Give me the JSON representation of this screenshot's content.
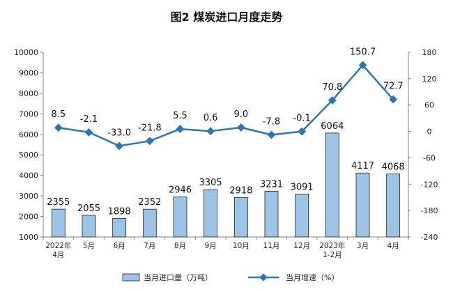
{
  "chart_data": {
    "type": "bar+line",
    "title": "图2  煤炭进口月度走势",
    "categories": [
      [
        "2022年",
        "4月"
      ],
      [
        "5月"
      ],
      [
        "6月"
      ],
      [
        "7月"
      ],
      [
        "8月"
      ],
      [
        "9月"
      ],
      [
        "10月"
      ],
      [
        "11月"
      ],
      [
        "12月"
      ],
      [
        "2023年",
        "1-2月"
      ],
      [
        "3月"
      ],
      [
        "4月"
      ]
    ],
    "series": [
      {
        "name": "当月进口量（万吨）",
        "type": "bar",
        "axis": "left",
        "values": [
          2355,
          2055,
          1898,
          2352,
          2946,
          3305,
          2918,
          3231,
          3091,
          6064,
          4117,
          4068
        ],
        "labels": [
          "2355",
          "2055",
          "1898",
          "2352",
          "2946",
          "3305",
          "2918",
          "3231",
          "3091",
          "6064",
          "4117",
          "4068"
        ],
        "color": "#9dc3e6"
      },
      {
        "name": "当月增速（%）",
        "type": "line",
        "axis": "right",
        "values": [
          8.5,
          -2.1,
          -33.0,
          -21.8,
          5.5,
          0.6,
          9.0,
          -7.8,
          -0.1,
          70.8,
          150.7,
          72.7
        ],
        "labels": [
          "8.5",
          "-2.1",
          "-33.0",
          "-21.8",
          "5.5",
          "0.6",
          "9.0",
          "-7.8",
          "-0.1",
          "70.8",
          "150.7",
          "72.7"
        ],
        "color": "#2e75b6"
      }
    ],
    "y_left": {
      "min": 1000,
      "max": 10000,
      "ticks": [
        "10000",
        "9000",
        "8000",
        "7000",
        "6000",
        "5000",
        "4000",
        "3000",
        "2000",
        "1000"
      ]
    },
    "y_right": {
      "min": -240,
      "max": 180,
      "ticks": [
        "180",
        "120",
        "60",
        "0",
        "-60",
        "-120",
        "-180",
        "-240"
      ]
    },
    "grid": false,
    "legend_position": "bottom"
  }
}
